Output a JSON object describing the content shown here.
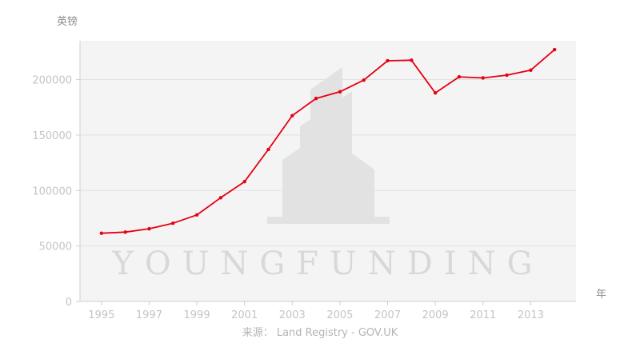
{
  "chart_data": {
    "type": "line",
    "ylabel": "英镑",
    "xlabel": "年",
    "source": "来源： Land Registry - GOV.UK",
    "watermark": "YOUNGFUNDING",
    "x": [
      1995,
      1996,
      1997,
      1998,
      1999,
      2000,
      2001,
      2002,
      2003,
      2004,
      2005,
      2006,
      2007,
      2008,
      2009,
      2010,
      2011,
      2012,
      2013,
      2014
    ],
    "series": [
      {
        "values": [
          61500,
          62500,
          65500,
          70500,
          78000,
          93500,
          108000,
          137000,
          167500,
          183000,
          189000,
          199500,
          217000,
          217500,
          188000,
          202500,
          201500,
          204000,
          208500,
          227000
        ]
      }
    ],
    "x_tick_labels": [
      "1995",
      "1997",
      "1999",
      "2001",
      "2003",
      "2005",
      "2007",
      "2009",
      "2011",
      "2013"
    ],
    "y_tick_labels": [
      "0",
      "50000",
      "100000",
      "150000",
      "200000"
    ],
    "y_ticks": [
      0,
      50000,
      100000,
      150000,
      200000
    ],
    "ylim": [
      0,
      235000
    ],
    "xlim": [
      1994.1,
      2014.9
    ],
    "grid": true,
    "line_color": "#e60012",
    "plot_background": "#f4f4f4",
    "grid_color": "#e1e1e1"
  }
}
